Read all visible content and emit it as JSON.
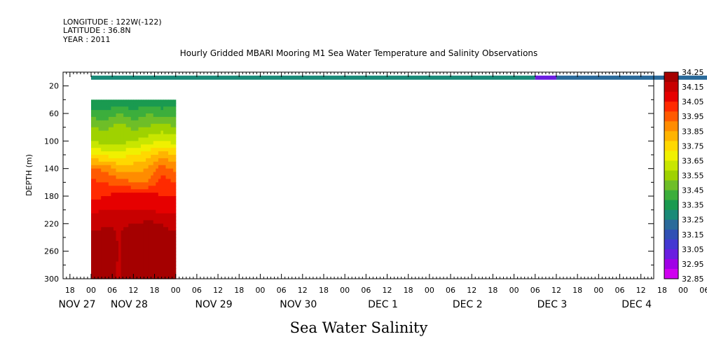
{
  "header": {
    "line1": "LONGITUDE : 122W(-122)",
    "line2": "LATITUDE : 36.8N",
    "line3": "YEAR : 2011"
  },
  "chart_data": {
    "type": "heatmap",
    "title": "Hourly Gridded MBARI Mooring M1 Sea Water Temperature and Salinity Observations",
    "variable_label": "Sea Water Salinity",
    "ylabel": "DEPTH (m)",
    "ylim": [
      300,
      0
    ],
    "y_ticks": [
      20,
      60,
      100,
      140,
      180,
      220,
      260,
      300
    ],
    "x_range_hours": [
      -9,
      207
    ],
    "x_hour_ticks": [
      "18",
      "00",
      "06",
      "12",
      "18",
      "00",
      "06",
      "12",
      "18",
      "00",
      "06",
      "12",
      "18",
      "00",
      "06",
      "12",
      "18",
      "00",
      "06",
      "12",
      "18",
      "00",
      "06",
      "12",
      "18",
      "00",
      "06",
      "12",
      "18",
      "00",
      "06",
      "12",
      "18",
      "00",
      "06",
      "12"
    ],
    "x_date_labels": [
      "NOV 27",
      "NOV 28",
      "NOV 29",
      "NOV 30",
      "DEC  1",
      "DEC  2",
      "DEC  3",
      "DEC  4"
    ],
    "colorbar_labels": [
      "34.25",
      "34.15",
      "34.05",
      "33.95",
      "33.85",
      "33.75",
      "33.65",
      "33.55",
      "33.45",
      "33.35",
      "33.25",
      "33.15",
      "33.05",
      "32.95",
      "32.85"
    ],
    "colorbar_colors": [
      "#a50000",
      "#c80000",
      "#e60000",
      "#ff2a00",
      "#ff5a00",
      "#ff8c00",
      "#ffb400",
      "#ffd800",
      "#f0f000",
      "#c8e600",
      "#9fd200",
      "#6ebe28",
      "#3cae3c",
      "#1a9a50",
      "#1a8a78",
      "#2a6a9a",
      "#3050b4",
      "#4438d2",
      "#6a1ee0",
      "#a000e6",
      "#d000f0"
    ],
    "surface_band": {
      "depth_top": 5,
      "depth_bottom": 11,
      "segments": [
        {
          "from": 0,
          "to": 126,
          "value": 33.3
        },
        {
          "from": 126,
          "to": 132,
          "value": 33.0
        },
        {
          "from": 132,
          "to": 200,
          "value": 33.2
        }
      ]
    },
    "profile_block": {
      "time_start": 0,
      "time_end": 24,
      "depth_start": 40,
      "depth_end": 300,
      "depths": [
        40,
        60,
        80,
        100,
        120,
        140,
        160,
        180,
        200,
        220,
        240,
        260,
        280,
        300
      ],
      "times": [
        0,
        4,
        8,
        12,
        16,
        20,
        24
      ],
      "values": [
        [
          33.32,
          33.32,
          33.34,
          33.32,
          33.34,
          33.32,
          33.34
        ],
        [
          33.42,
          33.4,
          33.45,
          33.4,
          33.45,
          33.42,
          33.42
        ],
        [
          33.52,
          33.5,
          33.55,
          33.5,
          33.52,
          33.55,
          33.52
        ],
        [
          33.58,
          33.55,
          33.55,
          33.58,
          33.62,
          33.65,
          33.62
        ],
        [
          33.72,
          33.7,
          33.68,
          33.72,
          33.75,
          33.82,
          33.78
        ],
        [
          33.92,
          33.9,
          33.82,
          33.82,
          33.85,
          33.95,
          33.9
        ],
        [
          34.0,
          33.98,
          33.95,
          33.92,
          33.92,
          34.02,
          33.98
        ],
        [
          34.02,
          34.05,
          34.08,
          34.08,
          34.08,
          34.05,
          34.05
        ],
        [
          34.1,
          34.12,
          34.12,
          34.12,
          34.12,
          34.1,
          34.1
        ],
        [
          34.15,
          34.18,
          34.18,
          34.18,
          34.2,
          34.18,
          34.15
        ],
        [
          34.22,
          34.2,
          34.18,
          34.22,
          34.24,
          34.22,
          34.2
        ],
        [
          34.26,
          34.22,
          34.18,
          34.26,
          34.28,
          34.26,
          34.22
        ],
        [
          34.24,
          34.2,
          34.18,
          34.24,
          34.25,
          34.24,
          34.2
        ],
        [
          34.22,
          34.2,
          34.18,
          34.22,
          34.22,
          34.2,
          34.2
        ]
      ]
    }
  }
}
